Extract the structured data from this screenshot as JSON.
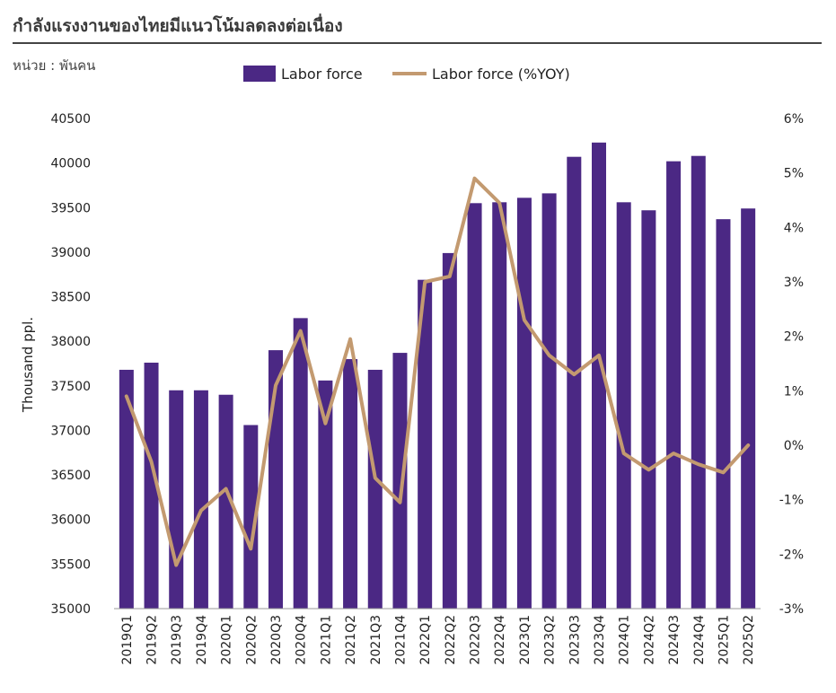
{
  "header": {
    "title": "กำลังแรงงานของไทยมีแนวโน้มลดลงต่อเนื่อง",
    "unit": "หน่วย : พันคน"
  },
  "colors": {
    "bar": "#4b2884",
    "line": "#c39a70",
    "axis": "#222222"
  },
  "chart_data": {
    "type": "bar+line",
    "categories": [
      "2019Q1",
      "2019Q2",
      "2019Q3",
      "2019Q4",
      "2020Q1",
      "2020Q2",
      "2020Q3",
      "2020Q4",
      "2021Q1",
      "2021Q2",
      "2021Q3",
      "2021Q4",
      "2022Q1",
      "2022Q2",
      "2022Q3",
      "2022Q4",
      "2023Q1",
      "2023Q2",
      "2023Q3",
      "2023Q4",
      "2024Q1",
      "2024Q2",
      "2024Q3",
      "2024Q4",
      "2025Q1",
      "2025Q2"
    ],
    "series": [
      {
        "name": "Labor force",
        "type": "bar",
        "axis": "left",
        "values": [
          37680,
          37760,
          37450,
          37450,
          37400,
          37060,
          37900,
          38260,
          37560,
          37800,
          37680,
          37870,
          38690,
          38990,
          39550,
          39560,
          39610,
          39660,
          40070,
          40230,
          39560,
          39470,
          40020,
          40080,
          39370,
          39490
        ]
      },
      {
        "name": "Labor force (%YOY)",
        "type": "line",
        "axis": "right",
        "values": [
          0.9,
          -0.3,
          -2.2,
          -1.2,
          -0.8,
          -1.9,
          1.1,
          2.1,
          0.4,
          1.95,
          -0.6,
          -1.05,
          3.0,
          3.1,
          4.9,
          4.45,
          2.3,
          1.65,
          1.3,
          1.65,
          -0.15,
          -0.45,
          -0.15,
          -0.35,
          -0.5,
          0.0
        ]
      }
    ],
    "ylabel": "Thousand ppl.",
    "ylim": [
      35000,
      40500
    ],
    "yticks": [
      "35000",
      "35500",
      "36000",
      "36500",
      "37000",
      "37500",
      "38000",
      "38500",
      "39000",
      "39500",
      "40000",
      "40500"
    ],
    "y2lim": [
      -3,
      6
    ],
    "y2ticks": [
      "-3%",
      "-2%",
      "-1%",
      "0%",
      "1%",
      "2%",
      "3%",
      "4%",
      "5%",
      "6%"
    ],
    "legend_position": "top"
  }
}
